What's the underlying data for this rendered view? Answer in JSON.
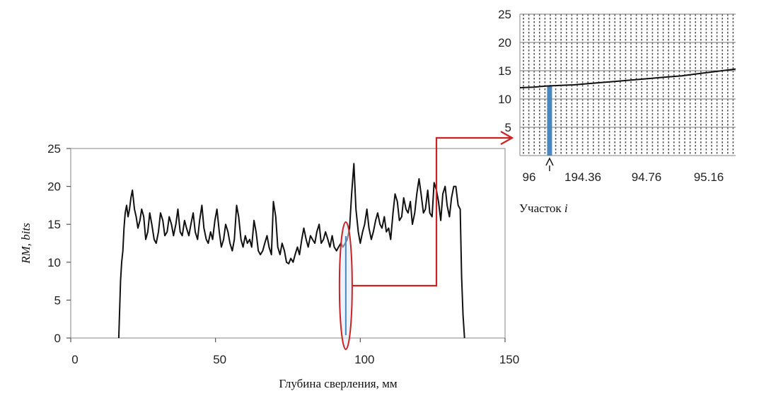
{
  "chart_data": [
    {
      "type": "line",
      "title": "",
      "xlabel": "Глубина сверления, мм",
      "ylabel": "RM, bits",
      "xlim": [
        0,
        150
      ],
      "ylim": [
        0,
        25
      ],
      "xticks": [
        0,
        50,
        100,
        150
      ],
      "yticks": [
        0,
        5,
        10,
        15,
        20,
        25
      ],
      "grid": false,
      "series": [
        {
          "x": [
            16.6,
            17.2,
            17.6,
            18.0,
            18.4,
            18.8,
            19.3,
            19.8,
            20.3,
            20.8,
            21.3,
            22.0,
            22.6,
            23.2,
            23.9,
            24.5,
            25.2,
            25.9,
            26.6,
            27.3,
            28.0,
            28.8,
            29.5,
            30.3,
            31.0,
            31.8,
            32.5,
            33.3,
            34.0,
            34.8,
            35.5,
            36.3,
            37.0,
            37.8,
            38.5,
            39.3,
            40.0,
            40.8,
            41.5,
            42.3,
            43.0,
            43.8,
            44.5,
            45.3,
            46.0,
            46.8,
            47.5,
            48.3,
            49.0,
            49.8,
            50.5,
            51.3,
            52.0,
            52.8,
            53.5,
            54.3,
            55.0,
            55.8,
            56.5,
            57.3,
            58.0,
            58.8,
            59.5,
            60.3,
            61.0,
            61.8,
            62.5,
            63.3,
            64.0,
            64.8,
            65.5,
            66.3,
            67.0,
            67.8,
            68.5,
            69.3,
            70.0,
            70.8,
            71.5,
            72.3,
            73.0,
            73.8,
            74.5,
            75.3,
            76.0,
            76.8,
            77.5,
            78.3,
            79.0,
            79.8,
            80.5,
            81.3,
            82.0,
            82.8,
            83.5,
            84.3,
            85.0,
            85.8,
            86.5,
            87.3,
            88.0,
            88.8,
            89.5,
            90.3,
            91.0,
            91.8,
            92.5,
            93.3,
            94.0,
            94.8,
            95.5,
            96.3,
            97.0,
            97.8,
            98.5,
            99.3,
            100.0,
            100.8,
            101.5,
            102.3,
            103.0,
            103.8,
            104.5,
            105.3,
            106.0,
            106.8,
            107.5,
            108.3,
            109.0,
            109.8,
            110.5,
            111.3,
            112.0,
            112.8,
            113.5,
            114.3,
            115.0,
            115.8,
            116.5,
            117.3,
            118.0,
            118.8,
            119.5,
            120.3,
            121.0,
            121.8,
            122.5,
            123.3,
            124.0,
            124.8,
            125.5,
            126.3,
            127.0,
            127.8,
            128.5,
            129.3,
            130.0,
            130.8,
            131.5,
            132.3,
            133.0,
            133.8,
            134.5,
            135.0,
            135.5,
            136.0
          ],
          "values": [
            0.0,
            7.5,
            10.0,
            11.5,
            14.5,
            16.5,
            17.5,
            16.0,
            17.0,
            18.5,
            19.5,
            17.0,
            16.0,
            14.5,
            15.5,
            17.0,
            16.0,
            13.0,
            14.0,
            16.5,
            15.0,
            13.0,
            12.5,
            14.0,
            16.5,
            15.5,
            13.5,
            14.0,
            16.0,
            15.0,
            13.5,
            15.0,
            17.0,
            14.0,
            13.5,
            15.5,
            14.5,
            13.5,
            15.0,
            16.5,
            14.0,
            13.0,
            15.5,
            17.5,
            14.5,
            13.0,
            12.5,
            14.0,
            13.0,
            15.5,
            17.0,
            14.0,
            12.0,
            13.0,
            15.0,
            14.0,
            12.5,
            11.5,
            13.0,
            17.5,
            16.0,
            13.0,
            12.0,
            13.5,
            12.5,
            13.0,
            12.0,
            15.5,
            14.0,
            11.5,
            11.0,
            11.5,
            12.5,
            13.5,
            12.0,
            11.0,
            18.0,
            16.0,
            12.0,
            11.0,
            12.5,
            11.5,
            10.0,
            9.8,
            10.5,
            10.0,
            11.0,
            12.0,
            11.0,
            13.0,
            14.5,
            13.0,
            12.0,
            13.5,
            13.0,
            12.5,
            14.0,
            15.0,
            12.5,
            13.0,
            14.0,
            13.0,
            12.0,
            13.5,
            12.0,
            11.5,
            12.0,
            12.5,
            12.0,
            12.5,
            13.0,
            14.5,
            19.0,
            23.0,
            17.0,
            14.0,
            12.5,
            14.0,
            15.0,
            17.0,
            14.5,
            13.0,
            14.0,
            15.5,
            16.5,
            15.0,
            14.5,
            16.0,
            14.0,
            14.5,
            13.0,
            16.5,
            19.0,
            18.0,
            15.5,
            16.0,
            18.5,
            17.0,
            16.5,
            18.0,
            15.0,
            16.5,
            19.0,
            21.0,
            19.0,
            16.5,
            17.0,
            19.5,
            16.5,
            16.0,
            20.5,
            19.5,
            18.0,
            15.5,
            19.0,
            20.0,
            17.5,
            16.0,
            18.5,
            20.0,
            20.0,
            17.5,
            17.0,
            8.0,
            3.0,
            0.0
          ]
        }
      ],
      "highlight_depth": 95
    },
    {
      "type": "line",
      "title": "",
      "xlabel": "Участок i",
      "ylabel": "",
      "xlim": [
        0,
        16
      ],
      "ylim": [
        0,
        25
      ],
      "xtick_labels": [
        "96",
        "194.36",
        "94.76",
        "95.16"
      ],
      "yticks": [
        5,
        10,
        15,
        20,
        25
      ],
      "grid": true,
      "series": [
        {
          "x": [
            0,
            1,
            2,
            3,
            4,
            5,
            6,
            7,
            8,
            9,
            10,
            11,
            12,
            13,
            14,
            15,
            16
          ],
          "values": [
            12.0,
            12.1,
            12.3,
            12.4,
            12.5,
            12.7,
            12.9,
            13.1,
            13.3,
            13.5,
            13.7,
            13.9,
            14.1,
            14.4,
            14.7,
            15.0,
            15.3
          ]
        }
      ],
      "highlight_segment": 2.2
    }
  ]
}
